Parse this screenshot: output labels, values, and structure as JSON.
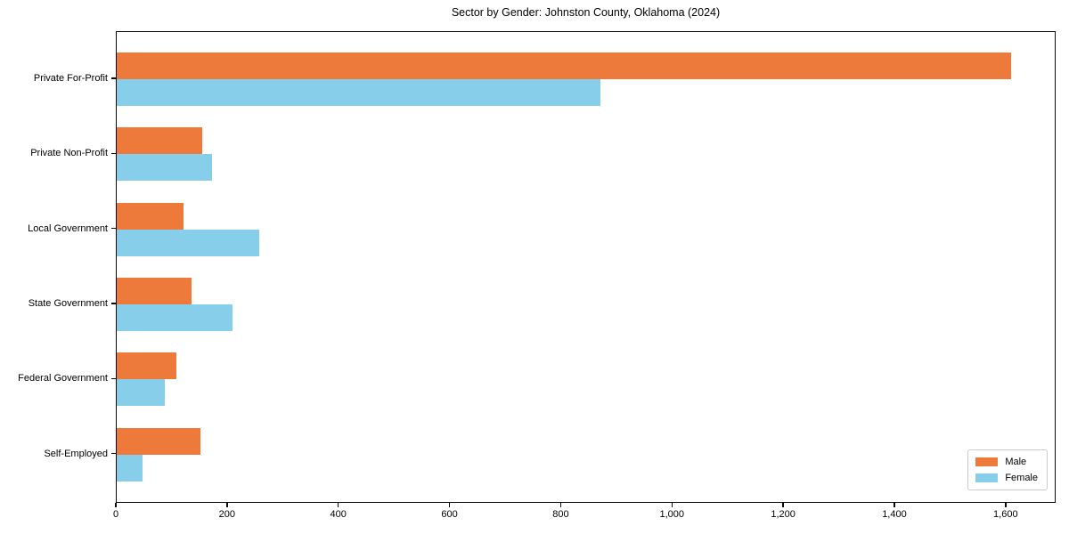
{
  "chart_data": {
    "type": "bar",
    "orientation": "horizontal",
    "title": "Sector by Gender: Johnston County, Oklahoma (2024)",
    "categories": [
      "Private For-Profit",
      "Private Non-Profit",
      "Local Government",
      "State Government",
      "Federal Government",
      "Self-Employed"
    ],
    "series": [
      {
        "name": "Male",
        "color": "#ED7A3B",
        "values": [
          1608,
          154,
          120,
          134,
          108,
          150
        ]
      },
      {
        "name": "Female",
        "color": "#87CEEB",
        "values": [
          870,
          172,
          256,
          208,
          87,
          46
        ]
      }
    ],
    "xlabel": "",
    "ylabel": "",
    "xlim": [
      0,
      1690
    ],
    "xticks": [
      0,
      200,
      400,
      600,
      800,
      1000,
      1200,
      1400,
      1600
    ],
    "xtick_labels": [
      "0",
      "200",
      "400",
      "600",
      "800",
      "1,000",
      "1,200",
      "1,400",
      "1,600"
    ],
    "grid": false,
    "legend": {
      "position": "lower right",
      "entries": [
        "Male",
        "Female"
      ]
    }
  }
}
